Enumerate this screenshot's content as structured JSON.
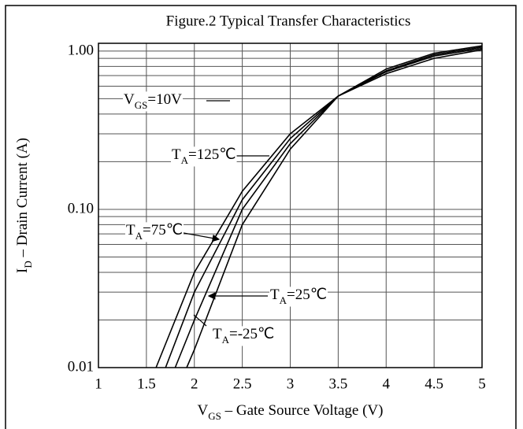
{
  "chart_data": {
    "type": "line",
    "title": "Figure.2 Typical Transfer Characteristics",
    "x_label": {
      "base": "V",
      "sub": "GS",
      "rest": " – Gate Source Voltage (V)"
    },
    "y_label": {
      "base": "I",
      "sub": "D",
      "rest": " – Drain Current (A)"
    },
    "log_y": true,
    "grid": true,
    "xlim": [
      1,
      5
    ],
    "xticks": [
      1,
      1.5,
      2,
      2.5,
      3,
      3.5,
      4,
      4.5,
      5
    ],
    "ylim": [
      0.01,
      1.12
    ],
    "yticks": [
      {
        "value": 1,
        "label": "1.00"
      },
      {
        "value": 0.1,
        "label": "0.10"
      },
      {
        "value": 0.01,
        "label": "0.01"
      }
    ],
    "minor_yticks": [
      0.02,
      0.03,
      0.04,
      0.05,
      0.06,
      0.07,
      0.08,
      0.09,
      0.2,
      0.3,
      0.4,
      0.5,
      0.6,
      0.7,
      0.8,
      0.9
    ],
    "series": [
      {
        "name": "125",
        "color": "#000000",
        "x": [
          1.6,
          2,
          2.5,
          3,
          3.5,
          4,
          4.5,
          5
        ],
        "values": [
          0.01,
          0.04,
          0.13,
          0.3,
          0.52,
          0.72,
          0.9,
          1.02
        ]
      },
      {
        "name": "75",
        "color": "#000000",
        "x": [
          1.7,
          2,
          2.5,
          3,
          3.5,
          4,
          4.5,
          5
        ],
        "values": [
          0.01,
          0.03,
          0.115,
          0.28,
          0.52,
          0.74,
          0.93,
          1.04
        ]
      },
      {
        "name": "25",
        "color": "#000000",
        "x": [
          1.8,
          2,
          2.5,
          3,
          3.5,
          4,
          4.5,
          5
        ],
        "values": [
          0.01,
          0.02,
          0.1,
          0.26,
          0.52,
          0.75,
          0.95,
          1.06
        ]
      },
      {
        "name": "-25",
        "color": "#000000",
        "x": [
          1.92,
          2,
          2.5,
          3,
          3.5,
          4,
          4.5,
          5
        ],
        "values": [
          0.01,
          0.013,
          0.08,
          0.24,
          0.52,
          0.77,
          0.97,
          1.08
        ]
      }
    ],
    "annotations": [
      {
        "base": "V",
        "sub": "GS",
        "rest": "=10V"
      },
      {
        "base": "T",
        "sub": "A",
        "rest": "=125℃"
      },
      {
        "base": "T",
        "sub": "A",
        "rest": "=75℃"
      },
      {
        "base": "T",
        "sub": "A",
        "rest": "=25℃"
      },
      {
        "base": "T",
        "sub": "A",
        "rest": "=-25℃"
      }
    ]
  }
}
